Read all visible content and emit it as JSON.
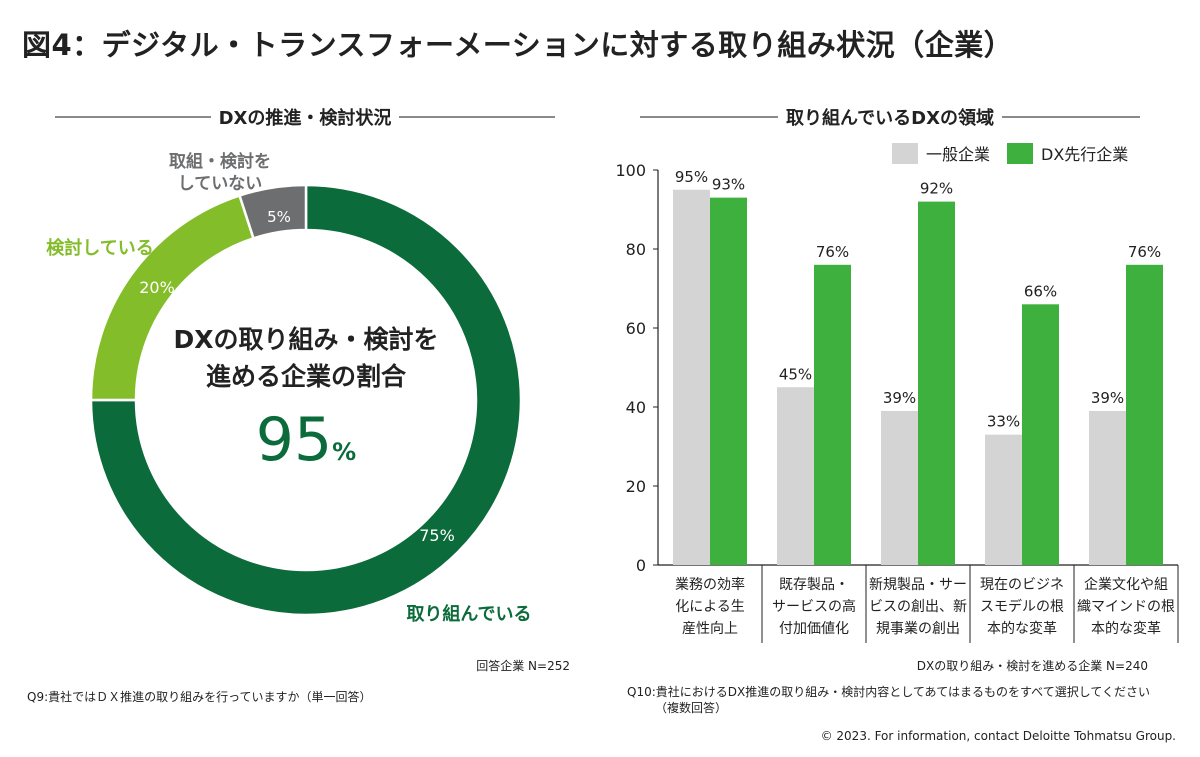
{
  "title": "図4：デジタル・トランスフォーメーションに対する取り組み状況（企業）",
  "left_panel": {
    "heading": "DXの推進・検討状況",
    "center_text_line1": "DXの取り組み・検討を",
    "center_text_line2": "進める企業の割合",
    "center_value": "95",
    "center_unit": "%",
    "respondents": "回答企業 N=252",
    "question": "Q9:貴社ではＤＸ推進の取り組みを行っていますか（単一回答）",
    "labels": {
      "doing": "取り組んでいる",
      "considering": "検討している",
      "not_line1": "取組・検討を",
      "not_line2": "していない"
    },
    "pct_labels": {
      "doing": "75%",
      "considering": "20%",
      "not": "5%"
    }
  },
  "right_panel": {
    "heading": "取り組んでいるDXの領域",
    "respondents": "DXの取り組み・検討を進める企業 N=240",
    "question_line1": "Q10:貴社におけるDX推進の取り組み・検討内容としてあてはまるものをすべて選択してください",
    "question_line2": "（複数回答）"
  },
  "copyright": "© 2023. For information, contact Deloitte Tohmatsu Group.",
  "colors": {
    "dark_green": "#0b6b3a",
    "light_green": "#84bd2a",
    "gray": "#6c6e70",
    "bar_gray": "#d4d4d4",
    "bar_green": "#3db03d"
  },
  "chart_data": [
    {
      "type": "pie",
      "title": "DXの推進・検討状況",
      "categories": [
        "取り組んでいる",
        "検討している",
        "取組・検討をしていない"
      ],
      "values": [
        75,
        20,
        5
      ],
      "center_label": "DXの取り組み・検討を進める企業の割合 95%"
    },
    {
      "type": "bar",
      "title": "取り組んでいるDXの領域",
      "categories": [
        [
          "業務の効率",
          "化による生",
          "産性向上"
        ],
        [
          "既存製品・",
          "サービスの高",
          "付加価値化"
        ],
        [
          "新規製品・サー",
          "ビスの創出、新",
          "規事業の創出"
        ],
        [
          "現在のビジネ",
          "スモデルの根",
          "本的な変革"
        ],
        [
          "企業文化や組",
          "織マインドの根",
          "本的な変革"
        ]
      ],
      "series": [
        {
          "name": "一般企業",
          "values": [
            95,
            45,
            39,
            33,
            39
          ],
          "labels": [
            "95%",
            "45%",
            "39%",
            "33%",
            "39%"
          ]
        },
        {
          "name": "DX先行企業",
          "values": [
            93,
            76,
            92,
            66,
            76
          ],
          "labels": [
            "93%",
            "76%",
            "92%",
            "66%",
            "76%"
          ]
        }
      ],
      "yticks": [
        0,
        20,
        40,
        60,
        80,
        100
      ],
      "ylim": [
        0,
        100
      ],
      "legend": "top-right"
    }
  ]
}
